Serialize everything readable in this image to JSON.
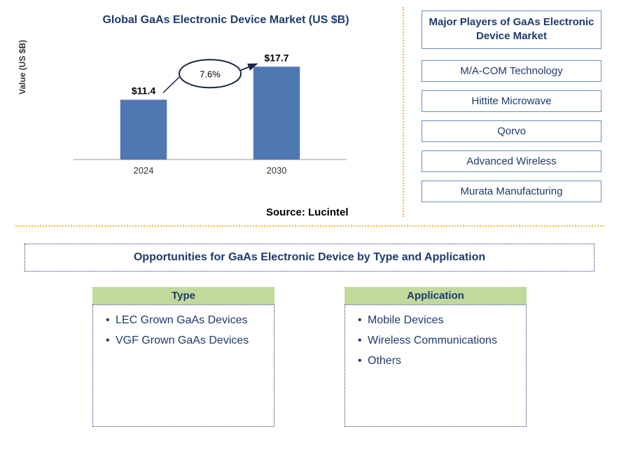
{
  "chart": {
    "title": "Global GaAs Electronic Device Market (US $B)",
    "type": "bar",
    "ylabel": "Value (US $B)",
    "categories": [
      "2024",
      "2030"
    ],
    "values": [
      11.4,
      17.7
    ],
    "value_labels": [
      "$11.4",
      "$17.7"
    ],
    "growth_label": "7.6%",
    "bar_color": "#4f78b3",
    "axis_color": "#999999",
    "text_color": "#000000",
    "annotation_stroke": "#1a2440",
    "ylim": [
      0,
      20
    ],
    "label_fontsize": 14,
    "axis_label_fontsize": 13,
    "bar_width_ratio": 0.35,
    "background_color": "#ffffff"
  },
  "source": "Source: Lucintel",
  "players": {
    "title": "Major Players of GaAs Electronic Device Market",
    "items": [
      "M/A-COM Technology",
      "Hittite Microwave",
      "Qorvo",
      "Advanced Wireless",
      "Murata Manufacturing"
    ],
    "border_color": "#6f8cc0",
    "text_color": "#1f3a6e"
  },
  "opportunities": {
    "title": "Opportunities for GaAs Electronic Device by Type and Application",
    "columns": [
      {
        "header": "Type",
        "items": [
          "LEC Grown GaAs Devices",
          "VGF Grown GaAs Devices"
        ]
      },
      {
        "header": "Application",
        "items": [
          "Mobile Devices",
          "Wireless Communications",
          "Others"
        ]
      }
    ],
    "header_bg": "#c1d99a",
    "text_color": "#1f3a6e",
    "border_style": "dotted"
  },
  "dividers": {
    "color": "#f4b73f"
  }
}
